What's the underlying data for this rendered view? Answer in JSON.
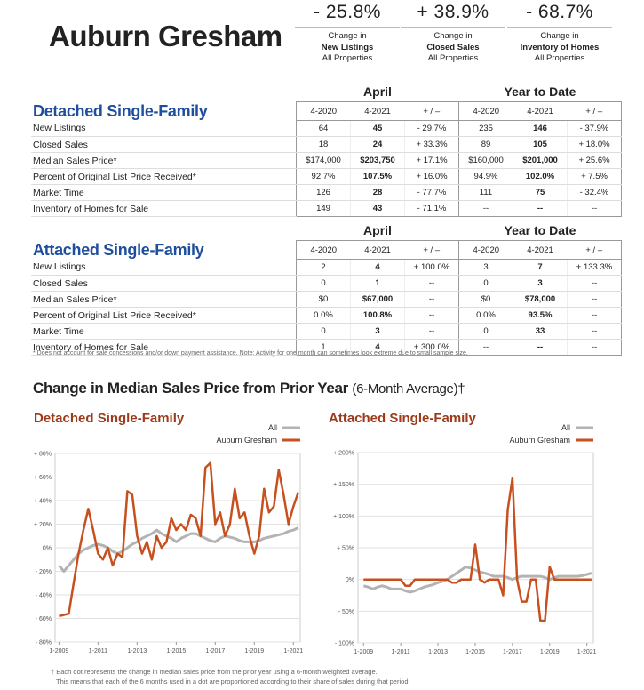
{
  "header": {
    "title": "Auburn Gresham",
    "stats": [
      {
        "value": "- 25.8%",
        "lines": [
          "Change in",
          "New Listings",
          "All Properties"
        ]
      },
      {
        "value": "+ 38.9%",
        "lines": [
          "Change in",
          "Closed Sales",
          "All Properties"
        ]
      },
      {
        "value": "- 68.7%",
        "lines": [
          "Change in",
          "Inventory of Homes",
          "All Properties"
        ]
      }
    ]
  },
  "tables": [
    {
      "title": "Detached Single-Family",
      "periods": [
        "April",
        "Year to Date"
      ],
      "columns": [
        "4-2020",
        "4-2021",
        "+ / –",
        "4-2020",
        "4-2021",
        "+ / –"
      ],
      "rows": [
        [
          "New Listings",
          "64",
          "45",
          "- 29.7%",
          "235",
          "146",
          "- 37.9%"
        ],
        [
          "Closed Sales",
          "18",
          "24",
          "+ 33.3%",
          "89",
          "105",
          "+ 18.0%"
        ],
        [
          "Median Sales Price*",
          "$174,000",
          "$203,750",
          "+ 17.1%",
          "$160,000",
          "$201,000",
          "+ 25.6%"
        ],
        [
          "Percent of Original List Price Received*",
          "92.7%",
          "107.5%",
          "+ 16.0%",
          "94.9%",
          "102.0%",
          "+ 7.5%"
        ],
        [
          "Market Time",
          "126",
          "28",
          "- 77.7%",
          "111",
          "75",
          "- 32.4%"
        ],
        [
          "Inventory of Homes for Sale",
          "149",
          "43",
          "- 71.1%",
          "--",
          "--",
          "--"
        ]
      ]
    },
    {
      "title": "Attached Single-Family",
      "periods": [
        "April",
        "Year to Date"
      ],
      "columns": [
        "4-2020",
        "4-2021",
        "+ / –",
        "4-2020",
        "4-2021",
        "+ / –"
      ],
      "rows": [
        [
          "New Listings",
          "2",
          "4",
          "+ 100.0%",
          "3",
          "7",
          "+ 133.3%"
        ],
        [
          "Closed Sales",
          "0",
          "1",
          "--",
          "0",
          "3",
          "--"
        ],
        [
          "Median Sales Price*",
          "$0",
          "$67,000",
          "--",
          "$0",
          "$78,000",
          "--"
        ],
        [
          "Percent of Original List Price Received*",
          "0.0%",
          "100.8%",
          "--",
          "0.0%",
          "93.5%",
          "--"
        ],
        [
          "Market Time",
          "0",
          "3",
          "--",
          "0",
          "33",
          "--"
        ],
        [
          "Inventory of Homes for Sale",
          "1",
          "4",
          "+ 300.0%",
          "--",
          "--",
          "--"
        ]
      ]
    }
  ],
  "table_note": "* Does not account for sale concessions and/or down payment assistance. Note: Activity for one month can sometimes look extreme due to small sample size.",
  "charts_title": "Change in Median Sales Price from Prior Year",
  "charts_subtitle": "(6-Month Average)†",
  "chart_note": [
    "† Each dot represents the change in median sales price from the prior year using a 6-month weighted average.",
    "This means that each of the 6 months used in a dot are proportioned according to their share of sales during that period."
  ],
  "chart_data": [
    {
      "type": "line",
      "title": "Detached Single-Family",
      "legend": "top-right",
      "grid": true,
      "x": [
        2009,
        2009.25,
        2009.5,
        2009.75,
        2010,
        2010.25,
        2010.5,
        2010.75,
        2011,
        2011.25,
        2011.5,
        2011.75,
        2012,
        2012.25,
        2012.5,
        2012.75,
        2013,
        2013.25,
        2013.5,
        2013.75,
        2014,
        2014.25,
        2014.5,
        2014.75,
        2015,
        2015.25,
        2015.5,
        2015.75,
        2016,
        2016.25,
        2016.5,
        2016.75,
        2017,
        2017.25,
        2017.5,
        2017.75,
        2018,
        2018.25,
        2018.5,
        2018.75,
        2019,
        2019.25,
        2019.5,
        2019.75,
        2020,
        2020.25,
        2020.5,
        2020.75,
        2021,
        2021.25
      ],
      "xlim": [
        2008.8,
        2021.35
      ],
      "xticks": [
        {
          "value": 2009,
          "label": "1-2009"
        },
        {
          "value": 2011,
          "label": "1-2011"
        },
        {
          "value": 2013,
          "label": "1-2013"
        },
        {
          "value": 2015,
          "label": "1-2015"
        },
        {
          "value": 2017,
          "label": "1-2017"
        },
        {
          "value": 2019,
          "label": "1-2019"
        },
        {
          "value": 2021,
          "label": "1-2021"
        }
      ],
      "ylim": [
        -80,
        80
      ],
      "yticks": [
        {
          "value": -80,
          "label": "- 80%"
        },
        {
          "value": -60,
          "label": "- 60%"
        },
        {
          "value": -40,
          "label": "- 40%"
        },
        {
          "value": -20,
          "label": "- 20%"
        },
        {
          "value": 0,
          "label": "0%"
        },
        {
          "value": 20,
          "label": "+ 20%"
        },
        {
          "value": 40,
          "label": "+ 40%"
        },
        {
          "value": 60,
          "label": "+ 60%"
        },
        {
          "value": 80,
          "label": "+ 80%"
        }
      ],
      "series": [
        {
          "name": "All",
          "color": "#b3b3b3",
          "values": [
            -15,
            -20,
            -15,
            -10,
            -5,
            -2,
            0,
            2,
            3,
            2,
            0,
            -3,
            -5,
            -3,
            0,
            3,
            5,
            8,
            10,
            12,
            15,
            12,
            10,
            8,
            5,
            8,
            10,
            12,
            12,
            10,
            8,
            6,
            5,
            8,
            10,
            9,
            8,
            6,
            5,
            5,
            5,
            6,
            8,
            9,
            10,
            11,
            12,
            14,
            15,
            17
          ]
        },
        {
          "name": "Auburn Gresham",
          "color": "#c8501e",
          "values": [
            -58,
            -57,
            -56,
            -30,
            -5,
            15,
            33,
            15,
            -5,
            -10,
            0,
            -15,
            -5,
            -8,
            48,
            45,
            10,
            -5,
            5,
            -10,
            10,
            0,
            5,
            25,
            15,
            20,
            15,
            28,
            25,
            10,
            68,
            72,
            20,
            30,
            10,
            20,
            50,
            25,
            30,
            10,
            -5,
            10,
            50,
            30,
            35,
            66,
            45,
            20,
            35,
            47
          ]
        }
      ]
    },
    {
      "type": "line",
      "title": "Attached Single-Family",
      "legend": "top-right",
      "grid": true,
      "x": [
        2009,
        2009.25,
        2009.5,
        2009.75,
        2010,
        2010.25,
        2010.5,
        2010.75,
        2011,
        2011.25,
        2011.5,
        2011.75,
        2012,
        2012.25,
        2012.5,
        2012.75,
        2013,
        2013.25,
        2013.5,
        2013.75,
        2014,
        2014.25,
        2014.5,
        2014.75,
        2015,
        2015.25,
        2015.5,
        2015.75,
        2016,
        2016.25,
        2016.5,
        2016.75,
        2017,
        2017.25,
        2017.5,
        2017.75,
        2018,
        2018.25,
        2018.5,
        2018.75,
        2019,
        2019.25,
        2019.5,
        2019.75,
        2020,
        2020.25,
        2020.5,
        2020.75,
        2021,
        2021.25
      ],
      "xlim": [
        2008.7,
        2021.35
      ],
      "xticks": [
        {
          "value": 2009,
          "label": "1-2009"
        },
        {
          "value": 2011,
          "label": "1-2011"
        },
        {
          "value": 2013,
          "label": "1-2013"
        },
        {
          "value": 2015,
          "label": "1-2015"
        },
        {
          "value": 2017,
          "label": "1-2017"
        },
        {
          "value": 2019,
          "label": "1-2019"
        },
        {
          "value": 2021,
          "label": "1-2021"
        }
      ],
      "ylim": [
        -100,
        200
      ],
      "yticks": [
        {
          "value": -100,
          "label": "- 100%"
        },
        {
          "value": -50,
          "label": "- 50%"
        },
        {
          "value": 0,
          "label": "0%"
        },
        {
          "value": 50,
          "label": "+ 50%"
        },
        {
          "value": 100,
          "label": "+ 100%"
        },
        {
          "value": 150,
          "label": "+ 150%"
        },
        {
          "value": 200,
          "label": "+ 200%"
        }
      ],
      "series": [
        {
          "name": "All",
          "color": "#b3b3b3",
          "values": [
            -10,
            -12,
            -15,
            -12,
            -10,
            -12,
            -15,
            -15,
            -15,
            -18,
            -20,
            -18,
            -15,
            -12,
            -10,
            -8,
            -5,
            -3,
            0,
            5,
            10,
            15,
            20,
            18,
            15,
            12,
            10,
            8,
            5,
            5,
            5,
            3,
            0,
            3,
            5,
            5,
            5,
            5,
            5,
            3,
            0,
            3,
            5,
            5,
            5,
            5,
            5,
            6,
            8,
            10
          ]
        },
        {
          "name": "Auburn Gresham",
          "color": "#c8501e",
          "values": [
            0,
            0,
            0,
            0,
            0,
            0,
            0,
            0,
            0,
            -10,
            -10,
            0,
            0,
            0,
            0,
            0,
            0,
            0,
            0,
            -5,
            -5,
            0,
            0,
            0,
            55,
            0,
            -5,
            0,
            0,
            0,
            -25,
            110,
            160,
            0,
            -35,
            -35,
            0,
            0,
            -65,
            -65,
            20,
            0,
            0,
            0,
            0,
            0,
            0,
            0,
            0,
            0
          ]
        }
      ]
    }
  ]
}
